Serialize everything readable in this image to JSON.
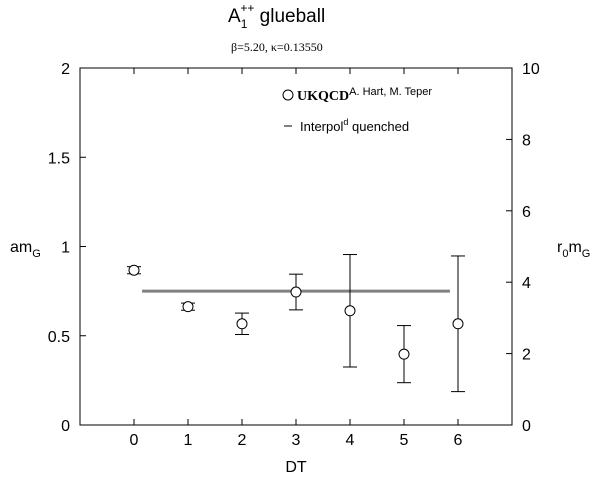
{
  "chart_data": {
    "type": "scatter",
    "title": "A",
    "title_sub": "1",
    "title_sup": "++",
    "title_tail": " glueball",
    "subtitle": "β=5.20, κ=0.13550",
    "xlabel": "DT",
    "ylabel_left": {
      "main": "am",
      "sub": "G"
    },
    "ylabel_right": {
      "pre": "r",
      "sub1": "0",
      "mid": "m",
      "sub2": "G"
    },
    "xlim": [
      -1,
      7
    ],
    "ylim": [
      0,
      2
    ],
    "ylim_right": [
      0,
      10
    ],
    "x_ticks": [
      0,
      1,
      2,
      3,
      4,
      5,
      6
    ],
    "x_tick_labels": [
      "0",
      "1",
      "2",
      "3",
      "4",
      "5",
      "6"
    ],
    "y_ticks": [
      0,
      0.5,
      1,
      1.5,
      2
    ],
    "y_tick_labels": [
      "0",
      "0.5",
      "1",
      "1.5",
      "2"
    ],
    "y_right_ticks": [
      0,
      2,
      4,
      6,
      8,
      10
    ],
    "y_right_tick_labels": [
      "0",
      "2",
      "4",
      "6",
      "8",
      "10"
    ],
    "grid": false,
    "series": [
      {
        "name": "UKQCD",
        "legend_note": "A. Hart, M. Teper",
        "marker": "open-circle",
        "points": [
          {
            "x": 0,
            "y": 0.867,
            "err": 0.02
          },
          {
            "x": 1,
            "y": 0.663,
            "err": 0.02
          },
          {
            "x": 2,
            "y": 0.567,
            "err": 0.06
          },
          {
            "x": 3,
            "y": 0.745,
            "err": 0.1
          },
          {
            "x": 4,
            "y": 0.64,
            "err": 0.315
          },
          {
            "x": 5,
            "y": 0.397,
            "err": 0.16
          },
          {
            "x": 6,
            "y": 0.567,
            "err": 0.38
          }
        ]
      },
      {
        "name": "Interpol",
        "name_sup": "d",
        "name_tail": " quenched",
        "marker": "line",
        "x_range": [
          0.15,
          5.85
        ],
        "y": 0.75,
        "color": "#808080"
      }
    ],
    "legend_position": "top-right"
  }
}
